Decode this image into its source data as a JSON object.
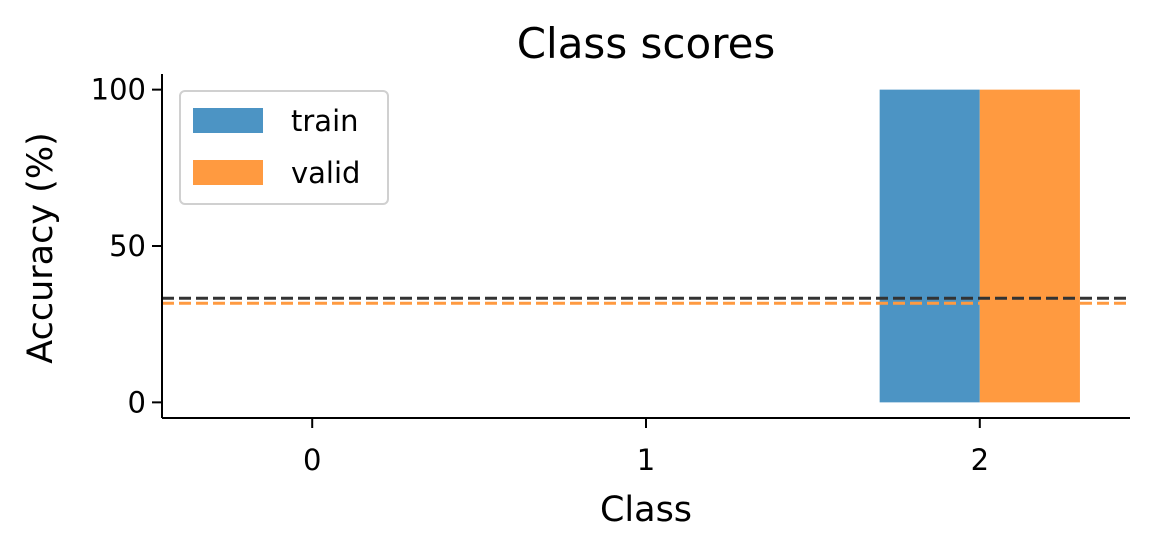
{
  "chart_data": {
    "type": "bar",
    "title": "Class scores",
    "xlabel": "Class",
    "ylabel": "Accuracy (%)",
    "categories": [
      "0",
      "1",
      "2"
    ],
    "series": [
      {
        "name": "train",
        "color": "#4c94c4",
        "values": [
          0,
          0,
          100
        ]
      },
      {
        "name": "valid",
        "color": "#ff9a40",
        "values": [
          0,
          0,
          100
        ]
      }
    ],
    "reference_lines": [
      {
        "value": 33.3,
        "color": "#333333",
        "style": "dashed"
      },
      {
        "value": 31.7,
        "color": "#ff9a40",
        "style": "dashed"
      }
    ],
    "xlim": [
      -0.45,
      2.45
    ],
    "ylim": [
      -5,
      105
    ],
    "yticks": [
      0,
      50,
      100
    ],
    "xticks": [
      "0",
      "1",
      "2"
    ],
    "grid": false,
    "legend_position": "top-left"
  }
}
